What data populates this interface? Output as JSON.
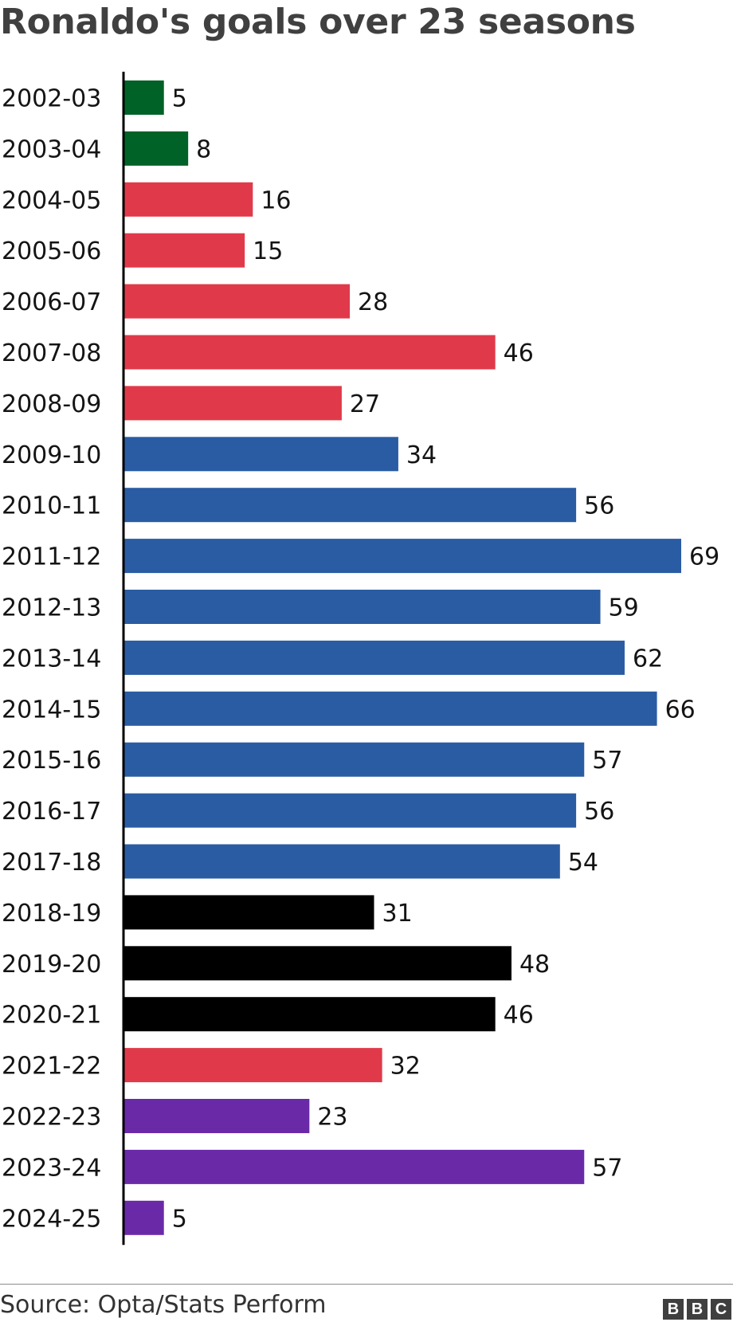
{
  "title": "Ronaldo's goals over 23 seasons",
  "source": "Source: Opta/Stats Perform",
  "logo": [
    "B",
    "B",
    "C"
  ],
  "colors": {
    "sporting": "#006227",
    "man_utd": "#e03a4a",
    "real_madrid": "#2a5ca3",
    "juventus": "#000000",
    "al_nassr": "#6a2aa8"
  },
  "chart_data": {
    "type": "bar",
    "orientation": "horizontal",
    "title": "Ronaldo's goals over 23 seasons",
    "xlabel": "",
    "ylabel": "",
    "xlim": [
      0,
      69
    ],
    "grid": false,
    "categories": [
      "2002-03",
      "2003-04",
      "2004-05",
      "2005-06",
      "2006-07",
      "2007-08",
      "2008-09",
      "2009-10",
      "2010-11",
      "2011-12",
      "2012-13",
      "2013-14",
      "2014-15",
      "2015-16",
      "2016-17",
      "2017-18",
      "2018-19",
      "2019-20",
      "2020-21",
      "2021-22",
      "2022-23",
      "2023-24",
      "2024-25"
    ],
    "values": [
      5,
      8,
      16,
      15,
      28,
      46,
      27,
      34,
      56,
      69,
      59,
      62,
      66,
      57,
      56,
      54,
      31,
      48,
      46,
      32,
      23,
      57,
      5
    ],
    "bar_colors": [
      "#006227",
      "#006227",
      "#e03a4a",
      "#e03a4a",
      "#e03a4a",
      "#e03a4a",
      "#e03a4a",
      "#2a5ca3",
      "#2a5ca3",
      "#2a5ca3",
      "#2a5ca3",
      "#2a5ca3",
      "#2a5ca3",
      "#2a5ca3",
      "#2a5ca3",
      "#2a5ca3",
      "#000000",
      "#000000",
      "#000000",
      "#e03a4a",
      "#6a2aa8",
      "#6a2aa8",
      "#6a2aa8"
    ],
    "data_labels": true
  }
}
